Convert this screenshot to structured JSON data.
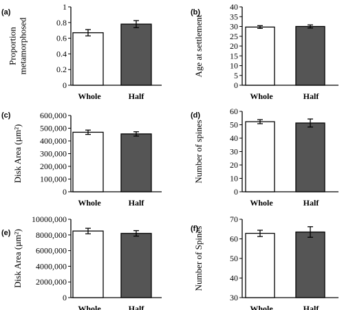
{
  "chart_data": [
    {
      "panel": "(a)",
      "type": "bar",
      "categories": [
        "Whole",
        "Half"
      ],
      "values": [
        0.67,
        0.78
      ],
      "errors": [
        0.04,
        0.045
      ],
      "ylabel_lines": [
        "Proportion",
        "metamorphosed"
      ],
      "ylim": [
        0,
        1
      ],
      "ticks": [
        0,
        0.2,
        0.4,
        0.6,
        0.8,
        1
      ],
      "tick_labels": [
        "0",
        "0.2",
        "0.4",
        "0.6",
        "0.8",
        "1"
      ]
    },
    {
      "panel": "(b)",
      "type": "bar",
      "categories": [
        "Whole",
        "Half"
      ],
      "values": [
        29.7,
        30.0
      ],
      "errors": [
        0.7,
        0.8
      ],
      "ylabel_lines": [
        "Age at settlement"
      ],
      "ylim": [
        0,
        40
      ],
      "ticks": [
        0,
        5,
        10,
        15,
        20,
        25,
        30,
        35,
        40
      ],
      "tick_labels": [
        "0",
        "5",
        "10",
        "15",
        "20",
        "25",
        "30",
        "35",
        "40"
      ]
    },
    {
      "panel": "(c)",
      "type": "bar",
      "categories": [
        "Whole",
        "Half"
      ],
      "values": [
        468000,
        455000
      ],
      "errors": [
        17000,
        17000
      ],
      "ylabel_lines": [
        "Disk Area (µm²)"
      ],
      "ylim": [
        0,
        600000
      ],
      "ticks": [
        0,
        100000,
        200000,
        300000,
        400000,
        500000,
        600000
      ],
      "tick_labels": [
        "0",
        "100,000",
        "200,000",
        "300,000",
        "400,000",
        "500,000",
        "600,000"
      ]
    },
    {
      "panel": "(d)",
      "type": "bar",
      "categories": [
        "Whole",
        "Half"
      ],
      "values": [
        52.3,
        51.3
      ],
      "errors": [
        1.5,
        3.0
      ],
      "ylabel_lines": [
        "Number of spines"
      ],
      "ylim": [
        0,
        60
      ],
      "ticks": [
        0,
        10,
        20,
        30,
        40,
        50,
        60
      ],
      "tick_labels": [
        "0",
        "10",
        "20",
        "30",
        "40",
        "50",
        "60"
      ]
    },
    {
      "panel": "(e)",
      "type": "bar",
      "categories": [
        "Whole",
        "Half"
      ],
      "values": [
        8500000,
        8200000
      ],
      "errors": [
        350000,
        350000
      ],
      "ylabel_lines": [
        "Disk Area (µm²)"
      ],
      "ylim": [
        0,
        10000000
      ],
      "ticks": [
        0,
        2000000,
        4000000,
        6000000,
        8000000,
        10000000
      ],
      "tick_labels": [
        "0",
        "2000,000",
        "4000,000",
        "6000,000",
        "8000,000",
        "10000,000"
      ]
    },
    {
      "panel": "(f)",
      "type": "bar",
      "categories": [
        "Whole",
        "Half"
      ],
      "values": [
        62.8,
        63.5
      ],
      "errors": [
        1.6,
        2.7
      ],
      "ylabel_lines": [
        "Number of Spines"
      ],
      "ylim": [
        30,
        70
      ],
      "ticks": [
        30,
        40,
        50,
        60,
        70
      ],
      "tick_labels": [
        "30",
        "40",
        "50",
        "60",
        "70"
      ]
    }
  ],
  "colors": {
    "whole_fill": "#ffffff",
    "half_fill": "#555555",
    "axis": "#000000"
  }
}
